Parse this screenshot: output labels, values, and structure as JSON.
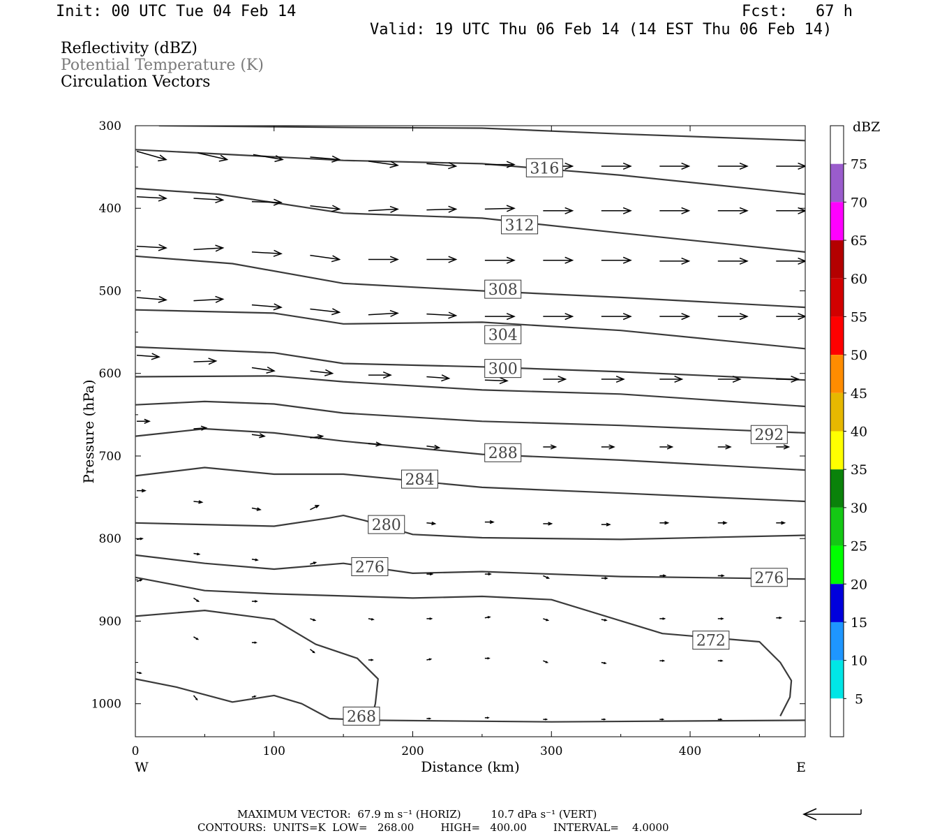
{
  "header": {
    "init": "Init: 00 UTC Tue 04 Feb 14",
    "fcst": "Fcst:   67 h",
    "valid": "Valid: 19 UTC Thu 06 Feb 14 (14 EST Thu 06 Feb 14)"
  },
  "fields": {
    "reflectivity": "Reflectivity (dBZ)",
    "theta": "Potential Temperature (K)",
    "vectors": "Circulation Vectors"
  },
  "footer": {
    "max_vector": "MAXIMUM VECTOR:  67.9 m s⁻¹ (HORIZ)         10.7 dPa s⁻¹ (VERT)",
    "contours": "CONTOURS:  UNITS=K  LOW=   268.00        HIGH=   400.00        INTERVAL=    4.0000"
  },
  "colors": {
    "contour": "#3a3a3a",
    "vector": "#000000"
  },
  "chart_data": {
    "type": "line",
    "xlabel": "Distance (km)",
    "ylabel": "Pressure (hPa)",
    "xlim": [
      0,
      483
    ],
    "ylim": [
      300,
      1040
    ],
    "x_ticks": [
      "0",
      "100",
      "200",
      "300",
      "400"
    ],
    "y_ticks": [
      "300",
      "400",
      "500",
      "600",
      "700",
      "800",
      "900",
      "1000"
    ],
    "x_end_labels": {
      "left": "W",
      "right": "E"
    },
    "colorbar": {
      "title": "dBZ",
      "levels": [
        "75",
        "70",
        "65",
        "60",
        "55",
        "50",
        "45",
        "40",
        "35",
        "30",
        "25",
        "20",
        "15",
        "10",
        "5"
      ],
      "colors": [
        "#ffffff",
        "#9a5ccc",
        "#ff00ff",
        "#b40000",
        "#d20000",
        "#ff0000",
        "#ff8c00",
        "#e6b800",
        "#ffff00",
        "#0a820a",
        "#14c814",
        "#00ff00",
        "#0000dc",
        "#1e96ff",
        "#00e6e6",
        "#ffffff"
      ]
    },
    "contour_labels": [
      {
        "text": "316",
        "x": 295,
        "p": 351
      },
      {
        "text": "312",
        "x": 277,
        "p": 420
      },
      {
        "text": "308",
        "x": 265,
        "p": 498
      },
      {
        "text": "304",
        "x": 265,
        "p": 553
      },
      {
        "text": "300",
        "x": 265,
        "p": 594
      },
      {
        "text": "292",
        "x": 457,
        "p": 674
      },
      {
        "text": "288",
        "x": 265,
        "p": 696
      },
      {
        "text": "284",
        "x": 205,
        "p": 728
      },
      {
        "text": "280",
        "x": 181,
        "p": 783
      },
      {
        "text": "276",
        "x": 169,
        "p": 834
      },
      {
        "text": "276",
        "x": 457,
        "p": 847
      },
      {
        "text": "272",
        "x": 415,
        "p": 923
      },
      {
        "text": "268",
        "x": 163,
        "p": 1015
      }
    ],
    "series": [
      {
        "points": [
          [
            17,
            300
          ],
          [
            150,
            302
          ],
          [
            250,
            303
          ],
          [
            350,
            310
          ],
          [
            483,
            318
          ]
        ]
      },
      {
        "points": [
          [
            0,
            329
          ],
          [
            150,
            342
          ],
          [
            250,
            346
          ],
          [
            350,
            360
          ],
          [
            483,
            383
          ]
        ]
      },
      {
        "points": [
          [
            0,
            376
          ],
          [
            60,
            383
          ],
          [
            150,
            406
          ],
          [
            250,
            412
          ],
          [
            350,
            430
          ],
          [
            483,
            453
          ]
        ]
      },
      {
        "points": [
          [
            0,
            458
          ],
          [
            70,
            467
          ],
          [
            150,
            491
          ],
          [
            250,
            500
          ],
          [
            350,
            508
          ],
          [
            483,
            520
          ]
        ]
      },
      {
        "points": [
          [
            0,
            523
          ],
          [
            100,
            527
          ],
          [
            150,
            540
          ],
          [
            250,
            538
          ],
          [
            350,
            548
          ],
          [
            483,
            570
          ]
        ]
      },
      {
        "points": [
          [
            0,
            568
          ],
          [
            100,
            575
          ],
          [
            150,
            588
          ],
          [
            250,
            592
          ],
          [
            350,
            598
          ],
          [
            483,
            608
          ]
        ]
      },
      {
        "points": [
          [
            0,
            604
          ],
          [
            100,
            603
          ],
          [
            150,
            610
          ],
          [
            250,
            620
          ],
          [
            350,
            625
          ],
          [
            483,
            640
          ]
        ]
      },
      {
        "points": [
          [
            0,
            638
          ],
          [
            50,
            634
          ],
          [
            100,
            637
          ],
          [
            150,
            648
          ],
          [
            250,
            658
          ],
          [
            350,
            663
          ],
          [
            483,
            672
          ]
        ]
      },
      {
        "points": [
          [
            0,
            676
          ],
          [
            50,
            667
          ],
          [
            100,
            672
          ],
          [
            150,
            682
          ],
          [
            250,
            698
          ],
          [
            350,
            705
          ],
          [
            483,
            717
          ]
        ]
      },
      {
        "points": [
          [
            0,
            724
          ],
          [
            50,
            714
          ],
          [
            100,
            722
          ],
          [
            125,
            722
          ],
          [
            150,
            722
          ],
          [
            250,
            738
          ],
          [
            350,
            745
          ],
          [
            483,
            755
          ]
        ]
      },
      {
        "points": [
          [
            0,
            781
          ],
          [
            100,
            785
          ],
          [
            140,
            775
          ],
          [
            150,
            772
          ],
          [
            165,
            778
          ],
          [
            200,
            795
          ],
          [
            250,
            799
          ],
          [
            350,
            801
          ],
          [
            483,
            796
          ]
        ]
      },
      {
        "points": [
          [
            0,
            820
          ],
          [
            50,
            830
          ],
          [
            100,
            837
          ],
          [
            150,
            830
          ],
          [
            200,
            842
          ],
          [
            250,
            840
          ],
          [
            350,
            846
          ],
          [
            483,
            849
          ]
        ]
      },
      {
        "points": [
          [
            0,
            847
          ],
          [
            50,
            863
          ],
          [
            100,
            867
          ],
          [
            200,
            872
          ],
          [
            250,
            870
          ],
          [
            300,
            874
          ],
          [
            380,
            915
          ],
          [
            450,
            925
          ],
          [
            465,
            950
          ],
          [
            473,
            972
          ],
          [
            472,
            992
          ],
          [
            465,
            1015
          ]
        ]
      },
      {
        "points": [
          [
            0,
            894
          ],
          [
            50,
            887
          ],
          [
            100,
            898
          ],
          [
            130,
            928
          ],
          [
            160,
            945
          ],
          [
            175,
            970
          ],
          [
            173,
            1000
          ],
          [
            170,
            1020
          ]
        ]
      },
      {
        "points": [
          [
            0,
            970
          ],
          [
            30,
            980
          ],
          [
            70,
            998
          ],
          [
            100,
            990
          ],
          [
            120,
            1000
          ],
          [
            140,
            1018
          ],
          [
            170,
            1020
          ],
          [
            300,
            1022
          ],
          [
            483,
            1020
          ]
        ]
      }
    ],
    "vectors": [
      {
        "rows": [
          [
            331,
            1,
            341
          ],
          [
            333,
            45,
            341
          ],
          [
            335,
            85,
            341
          ],
          [
            338,
            126,
            341
          ],
          [
            343,
            168,
            348
          ],
          [
            346,
            210,
            349
          ],
          [
            347,
            252,
            347
          ],
          [
            349,
            294,
            349
          ],
          [
            349,
            336,
            349
          ],
          [
            349,
            378,
            349
          ],
          [
            349,
            420,
            349
          ],
          [
            349,
            462,
            349
          ]
        ],
        "len": 42
      },
      {
        "rows": [
          [
            386,
            1,
            388
          ],
          [
            388,
            42,
            390
          ],
          [
            392,
            84,
            393
          ],
          [
            397,
            126,
            401
          ],
          [
            403,
            168,
            401
          ],
          [
            402,
            210,
            401
          ],
          [
            401,
            252,
            400
          ],
          [
            403,
            294,
            403
          ],
          [
            403,
            336,
            403
          ],
          [
            403,
            378,
            403
          ],
          [
            403,
            420,
            403
          ],
          [
            403,
            462,
            403
          ]
        ],
        "len": 42
      },
      {
        "rows": [
          [
            446,
            1,
            448
          ],
          [
            450,
            42,
            448
          ],
          [
            453,
            84,
            455
          ],
          [
            457,
            126,
            462
          ],
          [
            462,
            168,
            462
          ],
          [
            462,
            210,
            462
          ],
          [
            463,
            252,
            463
          ],
          [
            463,
            294,
            463
          ],
          [
            463,
            336,
            463
          ],
          [
            464,
            378,
            464
          ],
          [
            464,
            420,
            464
          ],
          [
            464,
            462,
            464
          ]
        ],
        "len": 42
      },
      {
        "rows": [
          [
            508,
            1,
            511
          ],
          [
            512,
            42,
            510
          ],
          [
            517,
            84,
            520
          ],
          [
            522,
            126,
            526
          ],
          [
            529,
            168,
            527
          ],
          [
            528,
            210,
            530
          ],
          [
            531,
            252,
            531
          ],
          [
            531,
            294,
            531
          ],
          [
            531,
            336,
            531
          ],
          [
            531,
            378,
            531
          ],
          [
            531,
            420,
            531
          ],
          [
            531,
            462,
            531
          ]
        ],
        "len": 42
      },
      {
        "rows": [
          [
            578,
            1,
            580
          ],
          [
            586,
            42,
            585
          ],
          [
            593,
            84,
            597
          ],
          [
            597,
            126,
            600
          ],
          [
            602,
            168,
            602
          ],
          [
            604,
            210,
            606
          ],
          [
            608,
            252,
            609
          ],
          [
            607,
            294,
            607
          ],
          [
            607,
            336,
            607
          ],
          [
            607,
            378,
            607
          ],
          [
            607,
            420,
            607
          ],
          [
            607,
            462,
            607
          ]
        ],
        "len": 32
      },
      {
        "rows": [
          [
            658,
            1,
            658
          ],
          [
            667,
            42,
            666
          ],
          [
            674,
            84,
            676
          ],
          [
            678,
            126,
            676
          ],
          [
            685,
            168,
            686
          ],
          [
            688,
            210,
            690
          ],
          [
            690,
            252,
            690
          ],
          [
            689,
            294,
            689
          ],
          [
            689,
            336,
            689
          ],
          [
            689,
            378,
            689
          ],
          [
            689,
            420,
            689
          ],
          [
            689,
            462,
            689
          ]
        ],
        "len": 18
      },
      {
        "rows": [
          [
            742,
            1,
            742
          ],
          [
            755,
            42,
            756
          ],
          [
            763,
            84,
            765
          ],
          [
            765,
            126,
            760
          ],
          [
            779,
            168,
            781
          ],
          [
            781,
            210,
            782
          ],
          [
            780,
            252,
            780
          ],
          [
            782,
            294,
            782
          ],
          [
            783,
            336,
            783
          ],
          [
            781,
            378,
            781
          ],
          [
            781,
            420,
            781
          ],
          [
            781,
            462,
            781
          ]
        ],
        "len": 12
      },
      {
        "rows": [
          [
            801,
            1,
            800
          ],
          [
            818,
            42,
            819
          ],
          [
            825,
            84,
            826
          ],
          [
            831,
            126,
            829
          ],
          [
            843,
            168,
            843
          ],
          [
            843,
            210,
            843
          ],
          [
            843,
            252,
            843
          ],
          [
            845,
            294,
            848
          ],
          [
            848,
            336,
            848
          ],
          [
            845,
            378,
            845
          ],
          [
            845,
            420,
            845
          ],
          [
            845,
            462,
            845
          ]
        ],
        "len": 8
      },
      {
        "rows": [
          [
            852,
            1,
            850
          ],
          [
            872,
            42,
            876
          ],
          [
            876,
            84,
            876
          ],
          [
            897,
            126,
            899
          ],
          [
            897,
            168,
            898
          ],
          [
            897,
            210,
            897
          ],
          [
            896,
            252,
            895
          ],
          [
            897,
            294,
            899
          ],
          [
            898,
            336,
            899
          ],
          [
            897,
            378,
            897
          ],
          [
            897,
            420,
            897
          ],
          [
            896,
            462,
            896
          ]
        ],
        "len": 7
      },
      {
        "rows": [
          [
            962,
            1,
            963
          ],
          [
            919,
            42,
            922
          ],
          [
            926,
            84,
            926
          ],
          [
            934,
            126,
            938
          ],
          [
            947,
            168,
            947
          ],
          [
            947,
            210,
            946
          ],
          [
            945,
            252,
            945
          ],
          [
            948,
            294,
            950
          ],
          [
            950,
            336,
            951
          ],
          [
            948,
            378,
            948
          ],
          [
            948,
            420,
            948
          ]
        ],
        "len": 6
      },
      {
        "rows": [
          [
            992,
            84,
            991
          ],
          [
            990,
            42,
            995
          ],
          [
            1018,
            210,
            1018
          ],
          [
            1017,
            252,
            1017
          ],
          [
            1019,
            294,
            1019
          ],
          [
            1019,
            336,
            1019
          ],
          [
            1019,
            378,
            1019
          ],
          [
            1019,
            420,
            1019
          ]
        ],
        "len": 5
      }
    ]
  }
}
